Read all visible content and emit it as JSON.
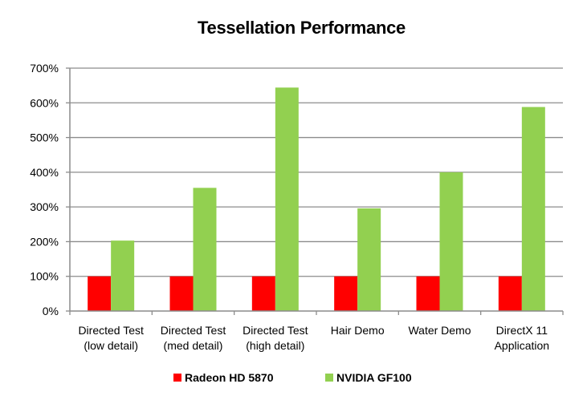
{
  "chart_data": {
    "type": "bar",
    "title": "Tessellation Performance",
    "xlabel": "",
    "ylabel": "",
    "ylim": [
      0,
      700
    ],
    "yticks": [
      0,
      100,
      200,
      300,
      400,
      500,
      600,
      700
    ],
    "ytick_labels": [
      "0%",
      "100%",
      "200%",
      "300%",
      "400%",
      "500%",
      "600%",
      "700%"
    ],
    "grid": true,
    "legend_position": "bottom",
    "categories": [
      [
        "Directed Test",
        "(low detail)"
      ],
      [
        "Directed Test",
        "(med detail)"
      ],
      [
        "Directed Test",
        "(high detail)"
      ],
      [
        "Hair Demo"
      ],
      [
        "Water Demo"
      ],
      [
        "DirectX 11",
        "Application"
      ]
    ],
    "series": [
      {
        "name": "Radeon HD 5870",
        "color": "#ff0000",
        "values": [
          100,
          100,
          100,
          100,
          100,
          100
        ]
      },
      {
        "name": "NVIDIA GF100",
        "color": "#92d050",
        "values": [
          203,
          355,
          644,
          296,
          400,
          588
        ]
      }
    ]
  }
}
